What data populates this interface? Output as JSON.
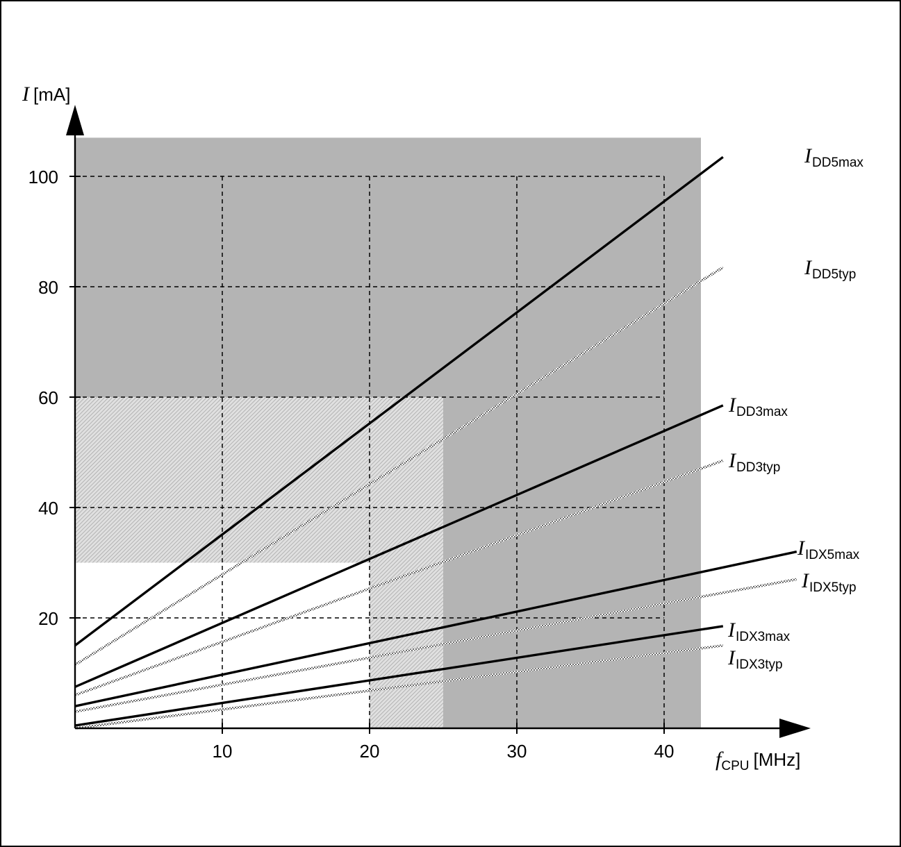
{
  "chart_data": {
    "type": "line",
    "x_label": {
      "symbol": "f",
      "subscript": "CPU",
      "unit": "[MHz]"
    },
    "y_label": {
      "symbol": "I",
      "unit": "[mA]"
    },
    "xlim": [
      0,
      50
    ],
    "ylim": [
      0,
      110
    ],
    "x_ticks": [
      10,
      20,
      30,
      40
    ],
    "y_ticks": [
      20,
      40,
      60,
      80,
      100
    ],
    "grid": true,
    "colors": {
      "max_line": "#000000",
      "typ_line": "#8a8a8a",
      "dark_region": "#b4b4b4",
      "hatched_region": "#d2d2d2"
    },
    "regions": [
      {
        "kind": "dark",
        "x": [
          0,
          42.5
        ],
        "y": [
          0,
          107
        ]
      },
      {
        "kind": "hatched",
        "x": [
          0,
          25
        ],
        "y": [
          30,
          60
        ]
      },
      {
        "kind": "hatched",
        "x": [
          20,
          25
        ],
        "y": [
          0,
          30
        ]
      },
      {
        "kind": "white",
        "x": [
          0,
          20
        ],
        "y": [
          0,
          30
        ]
      }
    ],
    "series": [
      {
        "symbol": "I",
        "subscript": "DD5max",
        "style": "max",
        "x": [
          0,
          44
        ],
        "y": [
          15,
          103.5
        ]
      },
      {
        "symbol": "I",
        "subscript": "DD5typ",
        "style": "typ",
        "x": [
          0,
          44
        ],
        "y": [
          11.5,
          83.5
        ]
      },
      {
        "symbol": "I",
        "subscript": "DD3max",
        "style": "max",
        "x": [
          0,
          44
        ],
        "y": [
          7.5,
          58.5
        ]
      },
      {
        "symbol": "I",
        "subscript": "DD3typ",
        "style": "typ",
        "x": [
          0,
          44
        ],
        "y": [
          6,
          48.5
        ]
      },
      {
        "symbol": "I",
        "subscript": "IDX5max",
        "style": "max",
        "x": [
          0,
          49
        ],
        "y": [
          4,
          32
        ]
      },
      {
        "symbol": "I",
        "subscript": "IDX5typ",
        "style": "typ",
        "x": [
          0,
          49
        ],
        "y": [
          3,
          27
        ]
      },
      {
        "symbol": "I",
        "subscript": "IDX3max",
        "style": "max",
        "x": [
          0,
          44
        ],
        "y": [
          0.5,
          18.5
        ]
      },
      {
        "symbol": "I",
        "subscript": "IDX3typ",
        "style": "typ",
        "x": [
          0,
          44
        ],
        "y": [
          0,
          15
        ]
      }
    ]
  }
}
